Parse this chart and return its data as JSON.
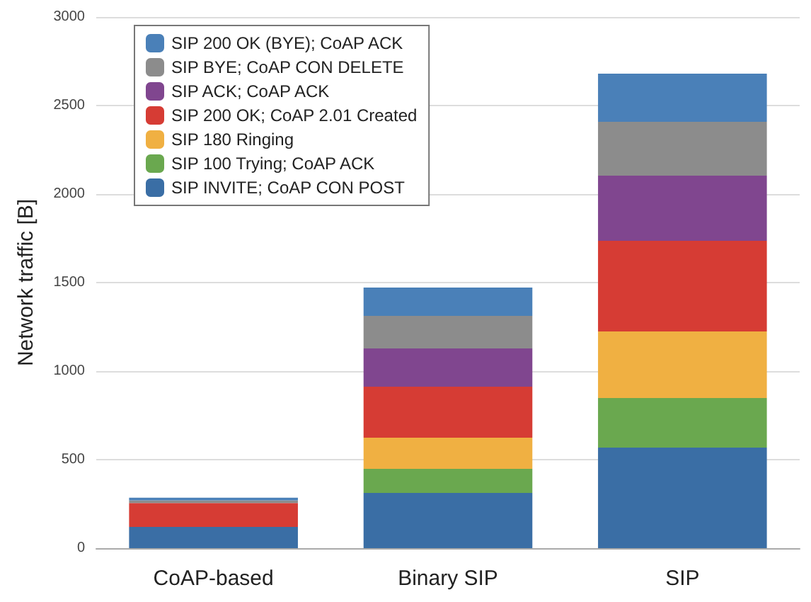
{
  "chart_data": {
    "type": "bar",
    "stacked": true,
    "ylabel": "Network traffic [B]",
    "categories": [
      "CoAP-based",
      "Binary SIP",
      "SIP"
    ],
    "series": [
      {
        "name": "SIP INVITE; CoAP CON POST",
        "color": "#3a6ea5",
        "values": [
          120,
          312,
          568
        ]
      },
      {
        "name": "SIP 100 Trying; CoAP ACK",
        "color": "#6aa84f",
        "values": [
          0,
          136,
          280
        ]
      },
      {
        "name": "SIP 180 Ringing",
        "color": "#f0b042",
        "values": [
          0,
          176,
          376
        ]
      },
      {
        "name": "SIP 200 OK; CoAP 2.01 Created",
        "color": "#d63c34",
        "values": [
          135,
          288,
          512
        ]
      },
      {
        "name": "SIP ACK; CoAP ACK",
        "color": "#80468f",
        "values": [
          0,
          216,
          368
        ]
      },
      {
        "name": "SIP BYE; CoAP CON DELETE",
        "color": "#8c8c8c",
        "values": [
          15,
          184,
          304
        ]
      },
      {
        "name": "SIP 200 OK (BYE); CoAP ACK",
        "color": "#4a80b8",
        "values": [
          15,
          160,
          272
        ]
      }
    ],
    "ylim": [
      0,
      3000
    ],
    "yticks": [
      0,
      500,
      1000,
      1500,
      2000,
      2500,
      3000
    ],
    "grid": "y",
    "legend": "top left"
  }
}
